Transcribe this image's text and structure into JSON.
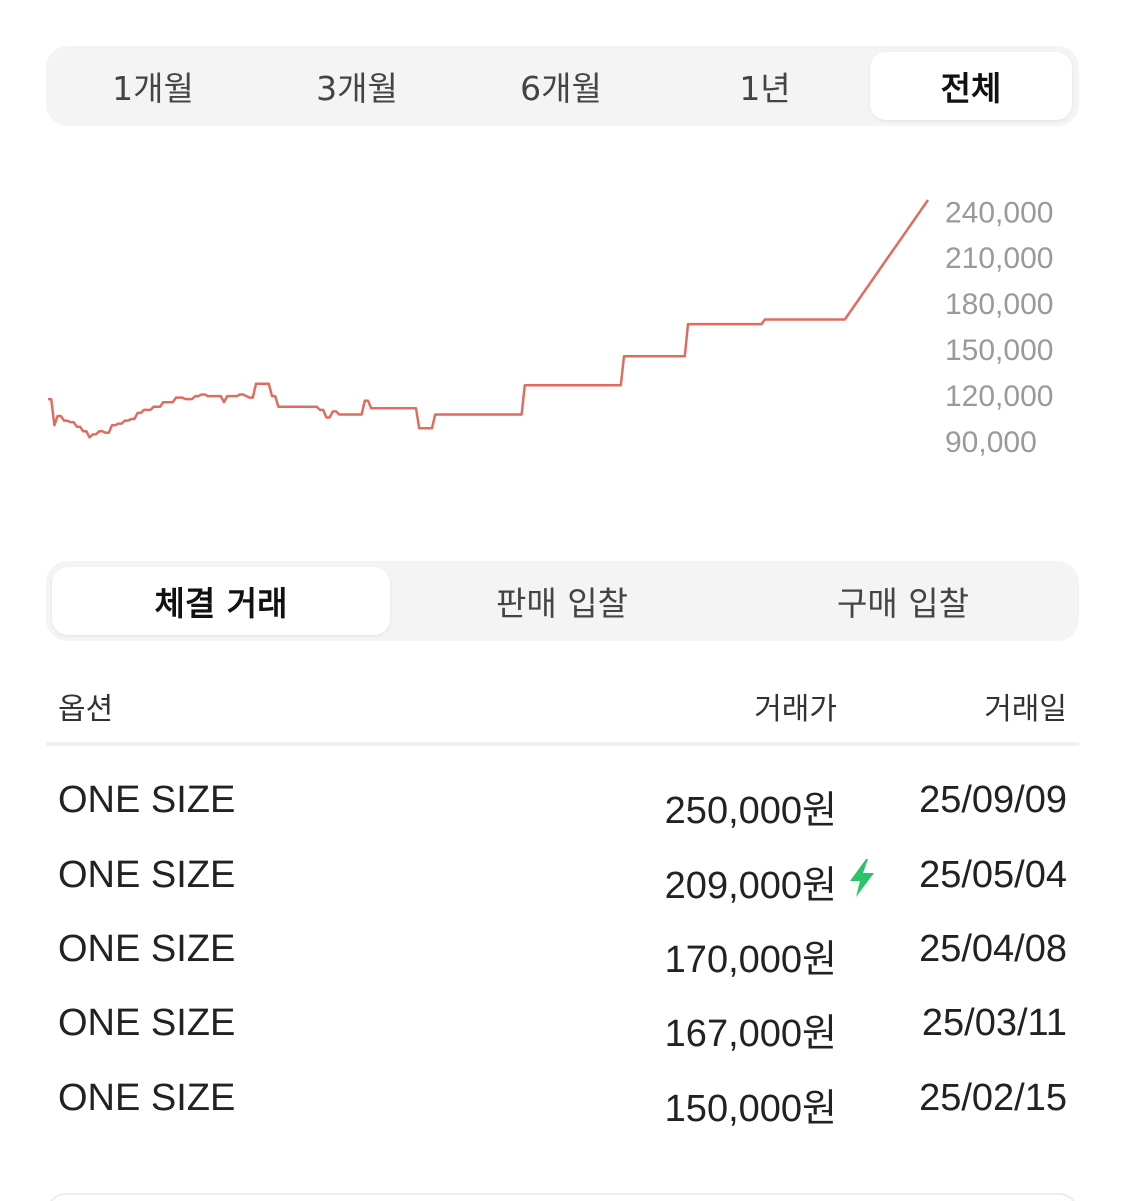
{
  "period_tabs": [
    {
      "label": "1개월",
      "active": false
    },
    {
      "label": "3개월",
      "active": false
    },
    {
      "label": "6개월",
      "active": false
    },
    {
      "label": "1년",
      "active": false
    },
    {
      "label": "전체",
      "active": true
    }
  ],
  "chart_data": {
    "type": "line",
    "title": "",
    "xlabel": "",
    "ylabel": "",
    "y_ticks": [
      "240,000",
      "210,000",
      "180,000",
      "150,000",
      "120,000",
      "90,000"
    ],
    "y_tick_values": [
      240000,
      210000,
      180000,
      150000,
      120000,
      90000
    ],
    "ylim": [
      75000,
      248000
    ],
    "line_color": "#e06c5f",
    "grid": false,
    "series": [
      {
        "values": [
          118000,
          118000,
          101000,
          107000,
          107000,
          104000,
          104000,
          103000,
          103000,
          100000,
          100000,
          97000,
          97000,
          93000,
          95000,
          95000,
          97000,
          97000,
          96000,
          96000,
          101000,
          101000,
          102000,
          102000,
          104000,
          104000,
          105000,
          105000,
          109000,
          109000,
          111000,
          111000,
          111000,
          113000,
          113000,
          113000,
          116000,
          116000,
          116000,
          116000,
          119000,
          119000,
          119000,
          118000,
          118000,
          118000,
          120000,
          120000,
          121000,
          121000,
          120000,
          120000,
          120000,
          120000,
          120000,
          116000,
          120000,
          120000,
          120000,
          120000,
          121000,
          121000,
          120000,
          119000,
          119000,
          128000,
          128000,
          128000,
          128000,
          128000,
          120000,
          120000,
          113000,
          113000,
          113000,
          113000,
          113000,
          113000,
          113000,
          113000,
          113000,
          113000,
          113000,
          113000,
          113000,
          111000,
          111000,
          106000,
          106000,
          110000,
          110000,
          108000,
          108000,
          108000,
          108000,
          108000,
          108000,
          108000,
          108000,
          117000,
          117000,
          112000,
          112000,
          112000,
          112000,
          112000,
          112000,
          112000,
          112000,
          112000,
          112000,
          112000,
          112000,
          112000,
          112000,
          112000,
          99000,
          99000,
          99000,
          99000,
          99000,
          108000,
          108000,
          108000,
          108000,
          108000,
          108000,
          108000,
          108000,
          108000,
          108000,
          108000,
          108000,
          108000,
          108000,
          108000,
          108000,
          108000,
          108000,
          108000,
          108000,
          108000,
          108000,
          108000,
          108000,
          108000,
          108000,
          108000,
          108000,
          127000,
          127000,
          127000,
          127000,
          127000,
          127000,
          127000,
          127000,
          127000,
          127000,
          127000,
          127000,
          127000,
          127000,
          127000,
          127000,
          127000,
          127000,
          127000,
          127000,
          127000,
          127000,
          127000,
          127000,
          127000,
          127000,
          127000,
          127000,
          127000,
          127000,
          127000,
          146000,
          146000,
          146000,
          146000,
          146000,
          146000,
          146000,
          146000,
          146000,
          146000,
          146000,
          146000,
          146000,
          146000,
          146000,
          146000,
          146000,
          146000,
          146000,
          146000,
          167000,
          167000,
          167000,
          167000,
          167000,
          167000,
          167000,
          167000,
          167000,
          167000,
          167000,
          167000,
          167000,
          167000,
          167000,
          167000,
          167000,
          167000,
          167000,
          167000,
          167000,
          167000,
          167000,
          167000,
          170000,
          170000,
          170000,
          170000,
          170000,
          170000,
          170000,
          170000,
          170000,
          170000,
          170000,
          170000,
          170000,
          170000,
          170000,
          170000,
          170000,
          170000,
          170000,
          170000,
          170000,
          170000,
          170000,
          170000,
          170000,
          170000,
          173000,
          176000,
          179000,
          182000,
          185000,
          188000,
          191000,
          194000,
          197000,
          200000,
          203000,
          206000,
          209000,
          212000,
          215000,
          218000,
          221000,
          224000,
          227000,
          230000,
          233000,
          236000,
          239000,
          242000,
          245000,
          248000
        ]
      }
    ]
  },
  "trade_tabs": [
    {
      "label": "체결 거래",
      "active": true
    },
    {
      "label": "판매 입찰",
      "active": false
    },
    {
      "label": "구매 입찰",
      "active": false
    }
  ],
  "table": {
    "headers": {
      "option": "옵션",
      "price": "거래가",
      "date": "거래일"
    },
    "rows": [
      {
        "option": "ONE SIZE",
        "price": "250,000원",
        "date": "25/09/09",
        "quick": false
      },
      {
        "option": "ONE SIZE",
        "price": "209,000원",
        "date": "25/05/04",
        "quick": true
      },
      {
        "option": "ONE SIZE",
        "price": "170,000원",
        "date": "25/04/08",
        "quick": false
      },
      {
        "option": "ONE SIZE",
        "price": "167,000원",
        "date": "25/03/11",
        "quick": false
      },
      {
        "option": "ONE SIZE",
        "price": "150,000원",
        "date": "25/02/15",
        "quick": false
      }
    ],
    "quick_icon": "lightning-bolt-icon",
    "quick_color": "#2bc46a"
  }
}
